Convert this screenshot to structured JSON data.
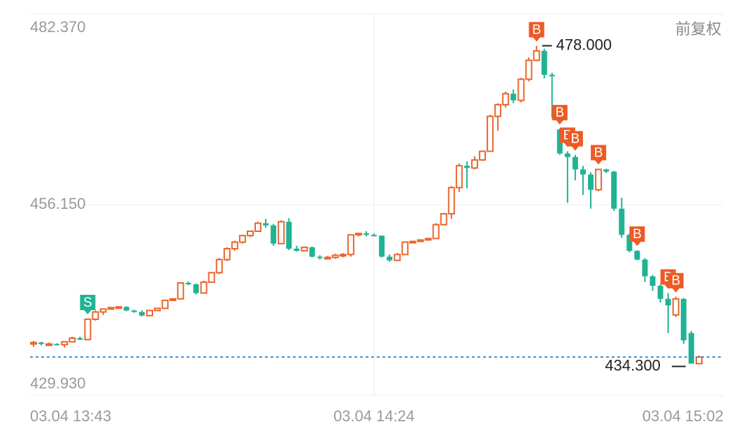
{
  "chart_data": {
    "type": "candlestick",
    "note_right": "前复权",
    "categories": [
      "03.04 13:43",
      null,
      null,
      null,
      null,
      null,
      null,
      null,
      null,
      null,
      null,
      null,
      null,
      null,
      null,
      null,
      null,
      null,
      null,
      null,
      null,
      null,
      null,
      null,
      null,
      null,
      null,
      null,
      null,
      null,
      null,
      null,
      null,
      null,
      null,
      null,
      null,
      null,
      null,
      null,
      null,
      null,
      null,
      null,
      "03.04 14:24",
      null,
      null,
      null,
      null,
      null,
      null,
      null,
      null,
      null,
      null,
      null,
      null,
      null,
      null,
      null,
      null,
      null,
      null,
      null,
      null,
      null,
      null,
      null,
      null,
      null,
      null,
      null,
      null,
      null,
      null,
      null,
      null,
      null,
      null,
      null,
      null,
      null,
      null,
      null,
      null,
      null,
      "03.04 15:02"
    ],
    "open": [
      437,
      437.2,
      437,
      437,
      436.9,
      437.3,
      437.8,
      437.6,
      440.4,
      441.4,
      441.8,
      442.0,
      442.1,
      441.6,
      441.4,
      440.9,
      441.6,
      441.9,
      443.0,
      443.2,
      445.4,
      445.2,
      444.0,
      445.5,
      446.8,
      448.6,
      450.1,
      451.0,
      451.9,
      452.5,
      453.6,
      453.3,
      450.8,
      453.8,
      450.1,
      449.8,
      450.3,
      449.0,
      448.9,
      448.9,
      449.2,
      449.3,
      452.0,
      452.2,
      452.0,
      451.9,
      449.0,
      448.5,
      449.3,
      451.0,
      451.1,
      451.3,
      451.5,
      453.4,
      454.9,
      458.5,
      461.5,
      461.2,
      462.3,
      463.5,
      468.3,
      469.9,
      471.4,
      470.5,
      473.4,
      476.0,
      477.3,
      474.0,
      466.5,
      463.2,
      462.7,
      461.0,
      460.3,
      458.2,
      461.0,
      460.7,
      455.6,
      452.0,
      449.8,
      448.6,
      446.3,
      445.0,
      443.2,
      441.0,
      443.2,
      438.5,
      434.3
    ],
    "high": [
      437.4,
      437.3,
      437.2,
      437.1,
      437.3,
      438,
      438,
      440.5,
      441.6,
      441.9,
      442.1,
      442.2,
      442.2,
      441.7,
      441.6,
      441.7,
      442.0,
      443.1,
      443.3,
      445.5,
      445.6,
      445.3,
      445.7,
      446.9,
      448.8,
      450.3,
      451.2,
      452.0,
      452.6,
      453.8,
      454.2,
      453.5,
      454.0,
      454.3,
      450.5,
      450.3,
      450.4,
      449.2,
      449.1,
      449.4,
      449.5,
      452.0,
      452.3,
      452.5,
      452.2,
      451.9,
      449.3,
      449.5,
      451.1,
      451.2,
      451.4,
      451.6,
      453.6,
      455.0,
      458.7,
      461.8,
      462.1,
      462.8,
      463.6,
      468.5,
      470.1,
      471.7,
      472.0,
      473.6,
      476.4,
      478.0,
      477.6,
      474.3,
      466.6,
      463.5,
      463.0,
      461.5,
      460.6,
      461.1,
      461.1,
      460.8,
      457.1,
      452.2,
      449.9,
      448.8,
      446.5,
      445.2,
      444.0,
      443.5,
      443.3,
      438.8,
      435.4
    ],
    "low": [
      436.6,
      436.8,
      436.8,
      436.9,
      436.5,
      437.2,
      437.5,
      437.6,
      440.2,
      441.0,
      441.7,
      441.8,
      441.5,
      441.3,
      440.8,
      440.9,
      441.5,
      441.9,
      442.9,
      443.2,
      445.1,
      443.8,
      443.9,
      445.4,
      446.6,
      448.4,
      449.8,
      450.8,
      451.7,
      452.4,
      453.0,
      450.5,
      450.8,
      449.9,
      449.7,
      449.8,
      448.9,
      448.6,
      448.7,
      448.7,
      448.9,
      449.0,
      451.8,
      451.8,
      451.8,
      448.9,
      448.3,
      448.4,
      449.2,
      450.9,
      451.0,
      451.2,
      451.4,
      453.3,
      454.2,
      457.9,
      458.4,
      461.0,
      462.2,
      463.4,
      466.3,
      469.5,
      470.1,
      470.2,
      473.1,
      475.9,
      473.5,
      468.1,
      463.0,
      456.4,
      459.5,
      457.5,
      455.6,
      458.0,
      460.5,
      455.3,
      451.6,
      449.6,
      448.5,
      445.5,
      444.3,
      442.7,
      438.5,
      440.7,
      437.0,
      434.3,
      434.3
    ],
    "close": [
      437.2,
      437,
      437,
      436.9,
      437.3,
      437.8,
      437.6,
      440.4,
      441.4,
      441.8,
      442.0,
      442.1,
      441.6,
      441.4,
      440.9,
      441.6,
      441.9,
      443.0,
      443.2,
      445.4,
      445.2,
      444.0,
      445.5,
      446.8,
      448.6,
      450.1,
      451.0,
      451.9,
      452.5,
      453.6,
      453.3,
      450.8,
      453.8,
      450.1,
      449.8,
      450.3,
      449.0,
      448.9,
      448.9,
      449.2,
      449.3,
      452.0,
      452.2,
      452.0,
      451.9,
      449.0,
      448.5,
      449.3,
      451.0,
      451.1,
      451.3,
      451.5,
      453.4,
      454.9,
      458.5,
      461.5,
      461.2,
      462.3,
      463.5,
      468.3,
      469.9,
      471.4,
      470.5,
      473.4,
      476.0,
      477.3,
      474.0,
      473.8,
      463.2,
      462.7,
      461.0,
      460.3,
      458.2,
      461.0,
      460.7,
      455.6,
      452.0,
      449.8,
      448.6,
      446.3,
      445.0,
      443.2,
      442.3,
      443.2,
      437.5,
      434.3,
      435.2
    ],
    "signals": [
      null,
      null,
      null,
      null,
      null,
      null,
      null,
      "S",
      null,
      null,
      null,
      null,
      null,
      null,
      null,
      null,
      null,
      null,
      null,
      null,
      null,
      null,
      null,
      null,
      null,
      null,
      null,
      null,
      null,
      null,
      null,
      null,
      null,
      null,
      null,
      null,
      null,
      null,
      null,
      null,
      null,
      null,
      null,
      null,
      null,
      null,
      null,
      null,
      null,
      null,
      null,
      null,
      null,
      null,
      null,
      null,
      null,
      null,
      null,
      null,
      null,
      null,
      null,
      null,
      null,
      "B",
      null,
      null,
      "B",
      "B",
      "B",
      null,
      null,
      "B",
      null,
      null,
      null,
      null,
      "B",
      null,
      null,
      null,
      "B",
      "B",
      null,
      null,
      null
    ],
    "up_color": "#e8652d",
    "down_color": "#1fb394",
    "buy_color": "#ec5b26",
    "sell_color": "#1fb394",
    "last_color": "#3a8fd0",
    "ylim": [
      429.93,
      482.37
    ],
    "yticks": [
      {
        "value": 429.93,
        "label": "429.930"
      },
      {
        "value": 456.15,
        "label": "456.150"
      },
      {
        "value": 482.37,
        "label": "482.370"
      }
    ],
    "max_label": {
      "value": 478.0,
      "label": "478.000"
    },
    "min_label": {
      "value": 434.3,
      "label": "434.300"
    },
    "grid": true
  }
}
